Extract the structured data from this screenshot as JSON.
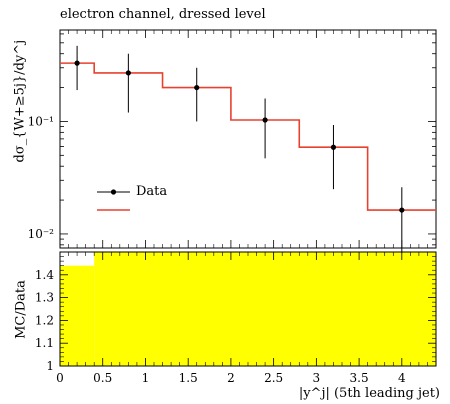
{
  "chart_data": [
    {
      "type": "line",
      "title": "electron channel, dressed level",
      "ylabel": "dσ_{W+≥5j}/dy^j",
      "ylog": true,
      "ylim": [
        0.0075,
        0.65
      ],
      "xlim": [
        0,
        4.4
      ],
      "yticks": [
        {
          "value": 0.1,
          "label": "10⁻¹"
        },
        {
          "value": 0.01,
          "label": "10⁻²"
        }
      ],
      "legend": {
        "placement": "lower-left",
        "entries": [
          "Data",
          ""
        ]
      },
      "series": [
        {
          "name": "Data",
          "points": [
            {
              "x": 0.2,
              "y": 0.33,
              "ylo": 0.19,
              "yhi": 0.47
            },
            {
              "x": 0.8,
              "y": 0.27,
              "ylo": 0.12,
              "yhi": 0.4
            },
            {
              "x": 1.6,
              "y": 0.2,
              "ylo": 0.1,
              "yhi": 0.3
            },
            {
              "x": 2.4,
              "y": 0.103,
              "ylo": 0.047,
              "yhi": 0.16
            },
            {
              "x": 3.2,
              "y": 0.059,
              "ylo": 0.025,
              "yhi": 0.093
            },
            {
              "x": 4.0,
              "y": 0.0163,
              "ylo": 0.0068,
              "yhi": 0.026
            }
          ]
        },
        {
          "name": "",
          "color": "#e8412f",
          "bins": [
            {
              "x0": 0.0,
              "x1": 0.4,
              "y": 0.33
            },
            {
              "x0": 0.4,
              "x1": 1.2,
              "y": 0.27
            },
            {
              "x0": 1.2,
              "x1": 2.0,
              "y": 0.2
            },
            {
              "x0": 2.0,
              "x1": 2.8,
              "y": 0.103
            },
            {
              "x0": 2.8,
              "x1": 3.6,
              "y": 0.059
            },
            {
              "x0": 3.6,
              "x1": 4.4,
              "y": 0.0163
            }
          ]
        }
      ]
    },
    {
      "type": "area",
      "ylabel": "MC/Data",
      "xlabel": "|y^j| (5th leading jet)",
      "xlim": [
        0,
        4.4
      ],
      "ylim": [
        1.0,
        1.5
      ],
      "xticks": [
        0,
        0.5,
        1,
        1.5,
        2,
        2.5,
        3,
        3.5,
        4
      ],
      "yticks": [
        1,
        1.1,
        1.2,
        1.3,
        1.4
      ],
      "band_color": "#ffff00",
      "band": [
        {
          "x0": 0.0,
          "x1": 0.4,
          "ylo": 1.0,
          "yhi": 1.44
        },
        {
          "x0": 0.4,
          "x1": 4.4,
          "ylo": 1.0,
          "yhi": 1.5
        }
      ]
    }
  ]
}
